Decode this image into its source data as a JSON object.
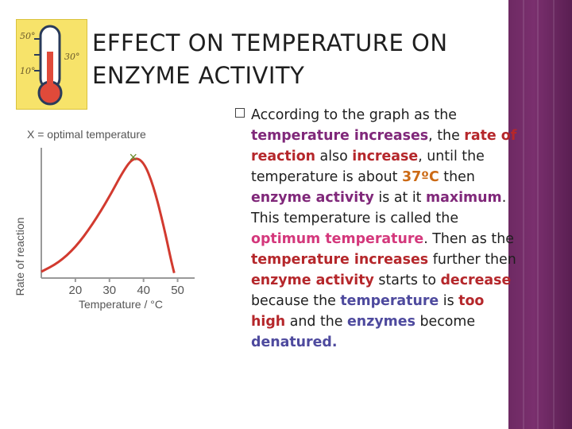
{
  "title": "EFFECT ON TEMPERATURE ON ENZYME ACTIVITY",
  "thermometer_labels": [
    "50°",
    "30°",
    "10°"
  ],
  "paragraph": [
    {
      "text": "According to the graph as the ",
      "style": "plain"
    },
    {
      "text": "temperature increases",
      "style": "purple"
    },
    {
      "text": ",  the ",
      "style": "plain"
    },
    {
      "text": "rate of reaction",
      "style": "red-mix"
    },
    {
      "text": " also ",
      "style": "plain"
    },
    {
      "text": "increase",
      "style": "red"
    },
    {
      "text": ", until the temperature is about ",
      "style": "plain"
    },
    {
      "text": "37ºC",
      "style": "orange"
    },
    {
      "text": " then ",
      "style": "plain"
    },
    {
      "text": "enzyme activity",
      "style": "purple"
    },
    {
      "text": " is at it ",
      "style": "plain"
    },
    {
      "text": "maximum",
      "style": "purple"
    },
    {
      "text": ".  This temperature is called the ",
      "style": "plain"
    },
    {
      "text": "optimum temperature",
      "style": "pink"
    },
    {
      "text": ".  Then as the ",
      "style": "plain"
    },
    {
      "text": "temperature increases",
      "style": "red"
    },
    {
      "text": " further then ",
      "style": "plain"
    },
    {
      "text": "enzyme activity",
      "style": "red"
    },
    {
      "text": " starts to ",
      "style": "plain"
    },
    {
      "text": "decrease",
      "style": "red"
    },
    {
      "text": " because the ",
      "style": "plain"
    },
    {
      "text": "temperature",
      "style": "blue"
    },
    {
      "text": " is ",
      "style": "plain"
    },
    {
      "text": "too high",
      "style": "red"
    },
    {
      "text": " and the ",
      "style": "plain"
    },
    {
      "text": "enzymes",
      "style": "blue"
    },
    {
      "text": " become ",
      "style": "plain"
    },
    {
      "text": "denatured.",
      "style": "blue"
    }
  ],
  "chart_data": {
    "type": "line",
    "legend": "X = optimal temperature",
    "xlabel": "Temperature / °C",
    "ylabel": "Rate of reaction",
    "x_ticks": [
      "20",
      "30",
      "40",
      "50"
    ],
    "xlim": [
      10,
      55
    ],
    "optimum_x": 37,
    "curve": [
      {
        "x": 10,
        "y": 0.05
      },
      {
        "x": 15,
        "y": 0.12
      },
      {
        "x": 20,
        "y": 0.24
      },
      {
        "x": 25,
        "y": 0.42
      },
      {
        "x": 30,
        "y": 0.64
      },
      {
        "x": 34,
        "y": 0.84
      },
      {
        "x": 37,
        "y": 0.95
      },
      {
        "x": 40,
        "y": 0.92
      },
      {
        "x": 43,
        "y": 0.72
      },
      {
        "x": 46,
        "y": 0.4
      },
      {
        "x": 48,
        "y": 0.15
      },
      {
        "x": 49,
        "y": 0.04
      }
    ]
  },
  "colors": {
    "band": "#7a2f6e",
    "curve": "#d23a2f",
    "marker": "#6a8a2a",
    "thermometer_bg": "#f7e36a"
  }
}
